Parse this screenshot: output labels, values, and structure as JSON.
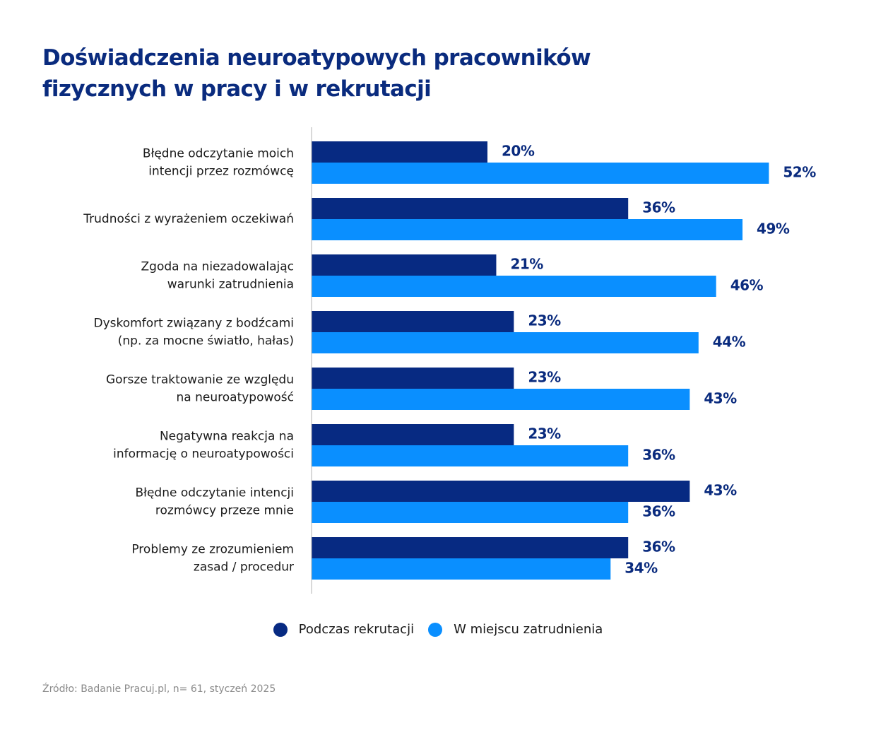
{
  "title_lines": [
    "Doświadczenia neuroatypowych pracowników",
    "fizycznych w pracy i w rekrutacji"
  ],
  "colors": {
    "title": "#0a2b7e",
    "series_1": "#072a82",
    "series_2": "#0a8fff",
    "axis": "#b3b3b3"
  },
  "chart_data": {
    "type": "bar",
    "orientation": "horizontal",
    "categories": [
      [
        "Błędne odczytanie moich",
        "intencji przez rozmówcę"
      ],
      [
        "Trudności z wyrażeniem oczekiwań"
      ],
      [
        "Zgoda na niezadowalając",
        "warunki zatrudnienia"
      ],
      [
        "Dyskomfort związany z bodźcami",
        "(np. za mocne światło, hałas)"
      ],
      [
        "Gorsze traktowanie ze względu",
        "na neuroatypowość"
      ],
      [
        "Negatywna reakcja na",
        "informację o neuroatypowości"
      ],
      [
        "Błędne odczytanie intencji",
        "rozmówcy przeze mnie"
      ],
      [
        "Problemy ze zrozumieniem",
        "zasad / procedur"
      ]
    ],
    "series": [
      {
        "name": "Podczas rekrutacji",
        "color": "#072a82",
        "values": [
          20,
          36,
          21,
          23,
          23,
          23,
          43,
          36
        ]
      },
      {
        "name": "W miejscu zatrudnienia",
        "color": "#0a8fff",
        "values": [
          52,
          49,
          46,
          44,
          43,
          36,
          36,
          34
        ]
      }
    ],
    "value_suffix": "%",
    "grid": false,
    "legend_position": "bottom"
  },
  "legend": {
    "items": [
      "Podczas rekrutacji",
      "W miejscu zatrudnienia"
    ]
  },
  "source": "Źródło: Badanie Pracuj.pl, n= 61, styczeń 2025"
}
